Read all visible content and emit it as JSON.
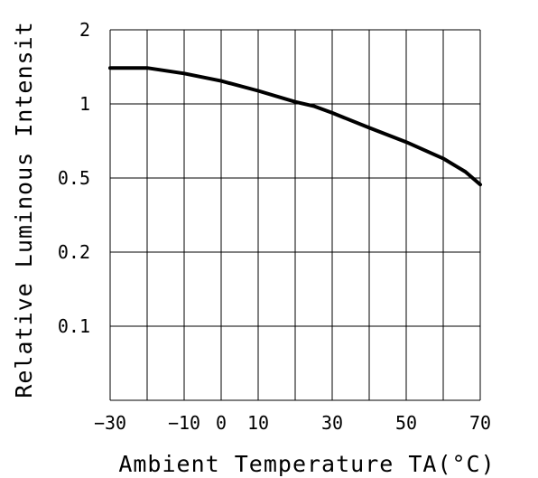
{
  "chart_data": {
    "type": "line",
    "title": "",
    "xlabel": "Ambient Temperature TA(°C)",
    "ylabel": "Relative Luminous Intensit",
    "x_ticks": [
      -30,
      -10,
      0,
      10,
      30,
      50,
      70
    ],
    "x_tick_labels": [
      "−30",
      "−10",
      "0",
      "10",
      "30",
      "50",
      "70"
    ],
    "y_ticks": [
      2,
      1,
      0.5,
      0.2,
      0.1
    ],
    "y_tick_labels": [
      "2",
      "1",
      "0.5",
      "0.2",
      "0.1"
    ],
    "xlim": [
      -30,
      70
    ],
    "grid": true,
    "series": [
      {
        "x": [
          -30,
          -20,
          -10,
          0,
          10,
          20,
          25,
          30,
          40,
          50,
          60,
          66,
          70
        ],
        "y": [
          1.4,
          1.4,
          1.33,
          1.24,
          1.13,
          1.02,
          0.98,
          0.92,
          0.8,
          0.7,
          0.6,
          0.53,
          0.47
        ]
      }
    ]
  }
}
